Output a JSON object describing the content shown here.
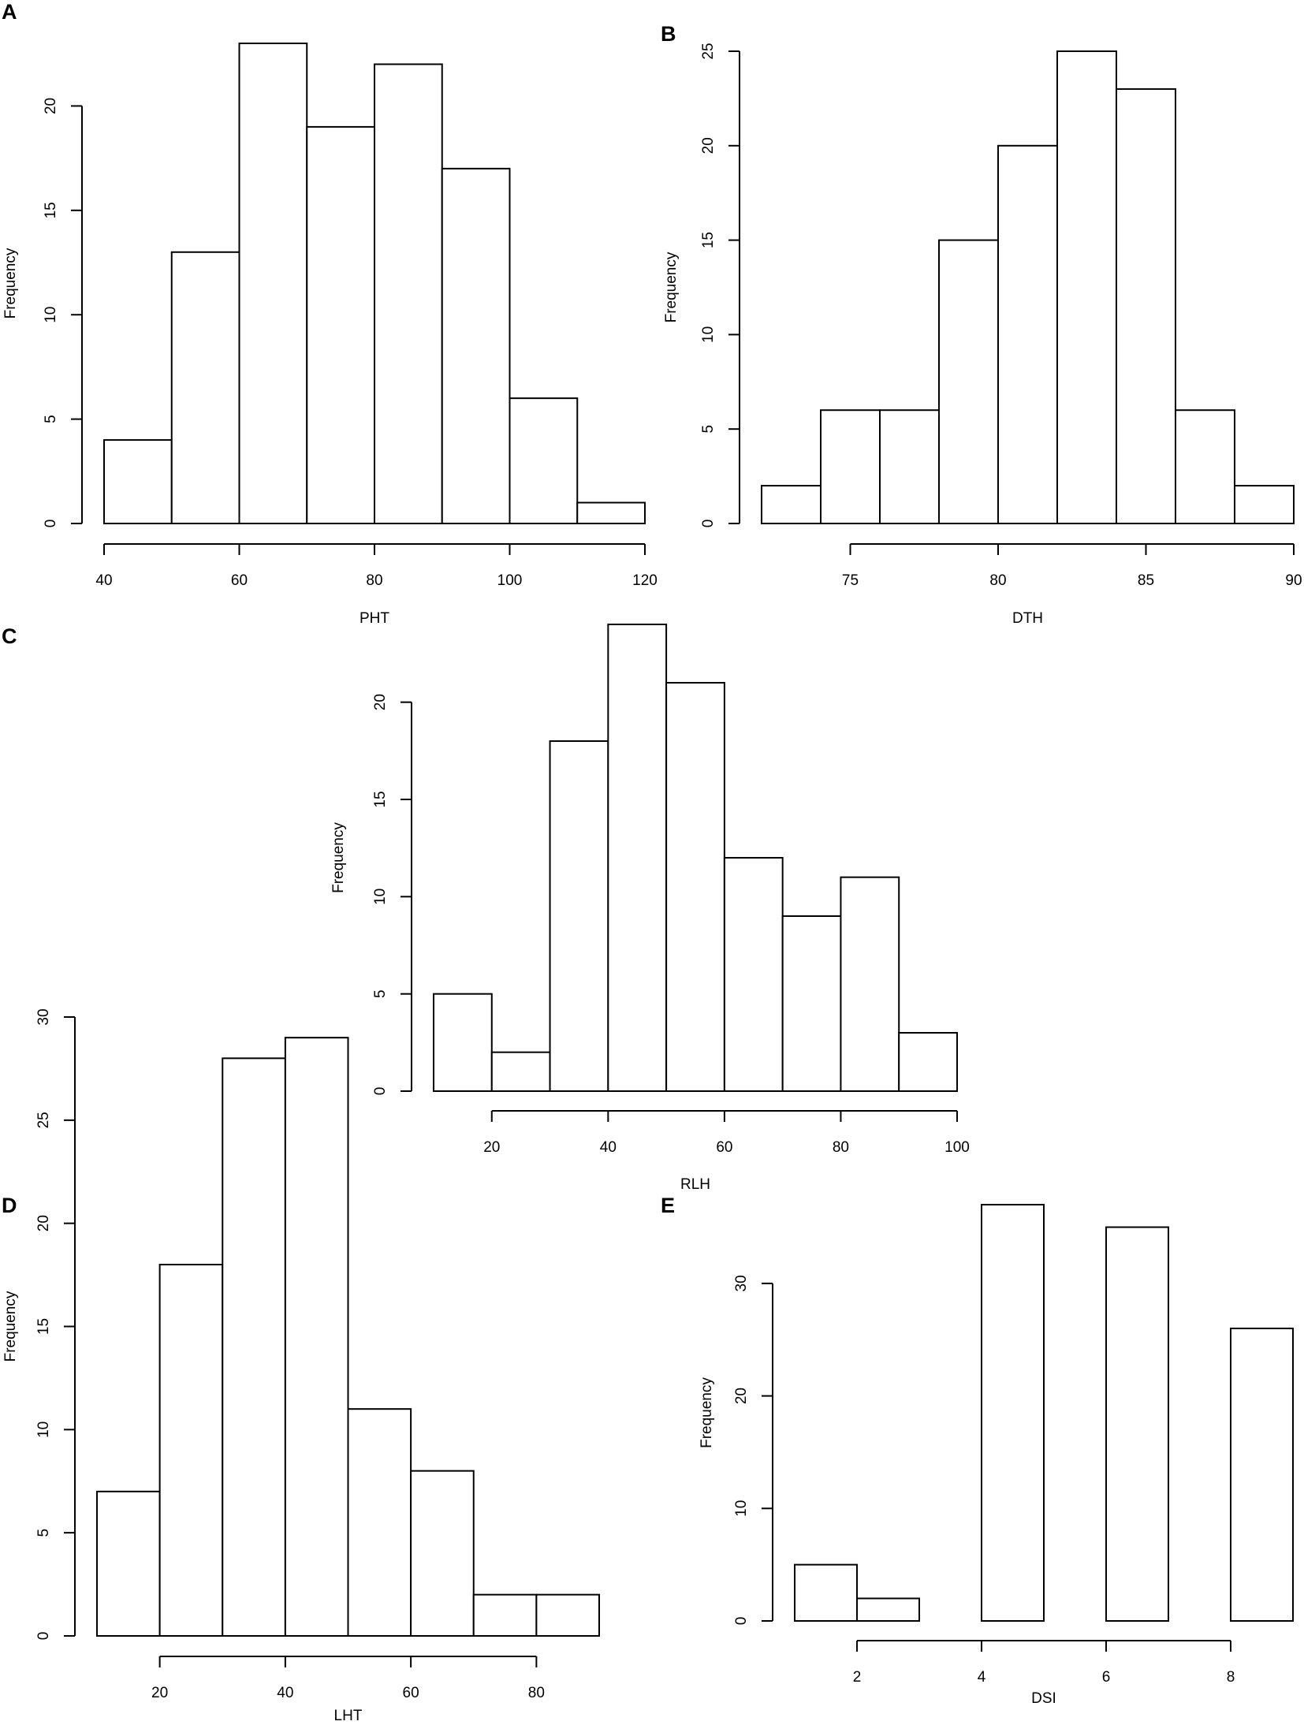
{
  "chart_data": [
    {
      "panel": "A",
      "type": "bar",
      "xlabel": "PHT",
      "ylabel": "Frequency",
      "bins": [
        [
          40,
          50
        ],
        [
          50,
          60
        ],
        [
          60,
          70
        ],
        [
          70,
          80
        ],
        [
          80,
          90
        ],
        [
          90,
          100
        ],
        [
          100,
          110
        ],
        [
          110,
          120
        ]
      ],
      "values": [
        4,
        13,
        23,
        19,
        22,
        17,
        6,
        1
      ],
      "xticks": [
        40,
        60,
        80,
        100,
        120
      ],
      "yticks": [
        0,
        5,
        10,
        15,
        20
      ],
      "xlim": [
        40,
        120
      ],
      "ylim": [
        0,
        23
      ]
    },
    {
      "panel": "B",
      "type": "bar",
      "xlabel": "DTH",
      "ylabel": "Frequency",
      "bins": [
        [
          72,
          74
        ],
        [
          74,
          76
        ],
        [
          76,
          78
        ],
        [
          78,
          80
        ],
        [
          80,
          82
        ],
        [
          82,
          84
        ],
        [
          84,
          86
        ],
        [
          86,
          88
        ],
        [
          88,
          90
        ]
      ],
      "values": [
        2,
        6,
        6,
        15,
        20,
        25,
        23,
        6,
        2
      ],
      "xticks": [
        75,
        80,
        85,
        90
      ],
      "yticks": [
        0,
        5,
        10,
        15,
        20,
        25
      ],
      "xlim": [
        72,
        90
      ],
      "ylim": [
        0,
        25
      ]
    },
    {
      "panel": "C",
      "type": "bar",
      "xlabel": "RLH",
      "ylabel": "Frequency",
      "bins": [
        [
          10,
          20
        ],
        [
          20,
          30
        ],
        [
          30,
          40
        ],
        [
          40,
          50
        ],
        [
          50,
          60
        ],
        [
          60,
          70
        ],
        [
          70,
          80
        ],
        [
          80,
          90
        ],
        [
          90,
          100
        ]
      ],
      "values": [
        5,
        2,
        18,
        24,
        21,
        12,
        9,
        11,
        3
      ],
      "xticks": [
        20,
        40,
        60,
        80,
        100
      ],
      "yticks": [
        0,
        5,
        10,
        15,
        20
      ],
      "xlim": [
        10,
        100
      ],
      "ylim": [
        0,
        24
      ]
    },
    {
      "panel": "D",
      "type": "bar",
      "xlabel": "LHT",
      "ylabel": "Frequency",
      "bins": [
        [
          10,
          20
        ],
        [
          20,
          30
        ],
        [
          30,
          40
        ],
        [
          40,
          50
        ],
        [
          50,
          60
        ],
        [
          60,
          70
        ],
        [
          70,
          80
        ],
        [
          80,
          90
        ]
      ],
      "values": [
        7,
        18,
        28,
        29,
        11,
        8,
        2,
        2
      ],
      "xticks": [
        20,
        40,
        60,
        80
      ],
      "yticks": [
        0,
        5,
        10,
        15,
        20,
        25,
        30
      ],
      "xlim": [
        10,
        90
      ],
      "ylim": [
        0,
        30
      ]
    },
    {
      "panel": "E",
      "type": "bar",
      "xlabel": "DSI",
      "ylabel": "Frequency",
      "bins": [
        [
          1,
          2
        ],
        [
          2,
          3
        ],
        [
          3,
          4
        ],
        [
          4,
          5
        ],
        [
          5,
          6
        ],
        [
          6,
          7
        ],
        [
          7,
          8
        ],
        [
          8,
          9
        ]
      ],
      "values": [
        5,
        2,
        0,
        37,
        0,
        35,
        0,
        26
      ],
      "xticks": [
        2,
        4,
        6,
        8
      ],
      "yticks": [
        0,
        10,
        20,
        30
      ],
      "xlim": [
        1,
        9
      ],
      "ylim": [
        0,
        37
      ]
    }
  ]
}
